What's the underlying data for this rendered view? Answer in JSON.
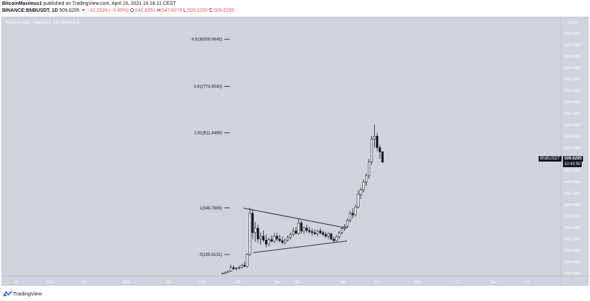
{
  "header": {
    "author": "BitcoinMaximus1",
    "published": "published on TradingView.com, April 16, 2021 15:16:11 CEST",
    "symbol": "BINANCE:BNBUSDT, 1D",
    "last": "509.6295",
    "change": "▼ −32.2529 (−5.95%)",
    "o_label": "O:",
    "o": "541.8351",
    "h_label": "H:",
    "h": "547.6074",
    "l_label": "L:",
    "l": "505.1200",
    "c_label": "C:",
    "c": "509.6295"
  },
  "chart": {
    "legend": "Binance Coin / TetherUS, 1D, BINANCE",
    "currency": "USDT",
    "price_tag": {
      "symbol": "BNBUSDT",
      "price": "509.6295",
      "countdown": "10:43:50"
    },
    "colors": {
      "background": "#d1d4dc",
      "candle": "#131722",
      "axis_text": "#ffffff"
    },
    "y_ticks": [
      "960.0000",
      "920.0000",
      "880.0000",
      "840.0000",
      "800.0000",
      "760.0000",
      "720.0000",
      "680.0000",
      "640.0000",
      "600.0000",
      "560.0000",
      "520.0000",
      "480.0000",
      "440.0000",
      "400.0000",
      "360.0000",
      "320.0000",
      "280.0000",
      "240.0000",
      "200.0000",
      "160.0000",
      "120.0000"
    ],
    "x_ticks": [
      "16",
      "Dec",
      "14",
      "2021",
      "18",
      "Feb",
      "15",
      "Mar",
      "15",
      "Apr",
      "14",
      "May",
      "17",
      "Jun",
      "14"
    ],
    "fib_levels": [
      {
        "label": "4.618(939.0646)",
        "value": 939.0646
      },
      {
        "label": "3.61(774.6040)",
        "value": 774.604
      },
      {
        "label": "2.61(611.4486)",
        "value": 611.4486
      },
      {
        "label": "1(348.7685)",
        "value": 348.7685
      },
      {
        "label": "0(185.6131)",
        "value": 185.6131
      }
    ],
    "triangle": {
      "upper": [
        {
          "date": "2021-02-20",
          "price": 348
        },
        {
          "date": "2021-03-31",
          "price": 278
        }
      ],
      "lower": [
        {
          "date": "2021-02-23",
          "price": 192
        },
        {
          "date": "2021-03-29",
          "price": 233
        }
      ]
    },
    "candles": [
      [
        118,
        122,
        116,
        120
      ],
      [
        120,
        126,
        118,
        124
      ],
      [
        124,
        130,
        122,
        127
      ],
      [
        127,
        150,
        125,
        140
      ],
      [
        140,
        148,
        132,
        136
      ],
      [
        136,
        142,
        130,
        138
      ],
      [
        138,
        146,
        134,
        140
      ],
      [
        140,
        152,
        136,
        148
      ],
      [
        148,
        160,
        142,
        144
      ],
      [
        144,
        190,
        140,
        186
      ],
      [
        186,
        350,
        180,
        330
      ],
      [
        330,
        345,
        240,
        262
      ],
      [
        262,
        300,
        230,
        278
      ],
      [
        278,
        290,
        226,
        240
      ],
      [
        240,
        262,
        220,
        250
      ],
      [
        250,
        270,
        230,
        236
      ],
      [
        236,
        255,
        210,
        222
      ],
      [
        222,
        245,
        215,
        238
      ],
      [
        238,
        252,
        228,
        232
      ],
      [
        232,
        260,
        226,
        250
      ],
      [
        250,
        262,
        232,
        240
      ],
      [
        240,
        256,
        228,
        234
      ],
      [
        234,
        248,
        222,
        228
      ],
      [
        228,
        242,
        220,
        236
      ],
      [
        236,
        252,
        232,
        246
      ],
      [
        246,
        262,
        238,
        256
      ],
      [
        256,
        280,
        250,
        268
      ],
      [
        268,
        282,
        256,
        260
      ],
      [
        260,
        310,
        255,
        296
      ],
      [
        296,
        304,
        258,
        268
      ],
      [
        268,
        284,
        258,
        278
      ],
      [
        278,
        290,
        262,
        270
      ],
      [
        270,
        282,
        258,
        266
      ],
      [
        266,
        276,
        252,
        262
      ],
      [
        262,
        274,
        254,
        258
      ],
      [
        258,
        272,
        250,
        268
      ],
      [
        268,
        278,
        256,
        262
      ],
      [
        262,
        270,
        250,
        256
      ],
      [
        256,
        266,
        244,
        250
      ],
      [
        250,
        264,
        240,
        258
      ],
      [
        258,
        262,
        236,
        240
      ],
      [
        240,
        250,
        226,
        234
      ],
      [
        234,
        254,
        230,
        248
      ],
      [
        248,
        268,
        240,
        262
      ],
      [
        262,
        282,
        256,
        276
      ],
      [
        276,
        292,
        268,
        284
      ],
      [
        284,
        312,
        278,
        306
      ],
      [
        306,
        338,
        298,
        330
      ],
      [
        330,
        348,
        312,
        324
      ],
      [
        324,
        360,
        318,
        352
      ],
      [
        352,
        410,
        346,
        396
      ],
      [
        396,
        420,
        380,
        412
      ],
      [
        412,
        448,
        404,
        440
      ],
      [
        440,
        470,
        426,
        462
      ],
      [
        462,
        520,
        450,
        510
      ],
      [
        510,
        600,
        500,
        590
      ],
      [
        590,
        640,
        560,
        600
      ],
      [
        600,
        612,
        548,
        560
      ],
      [
        560,
        570,
        520,
        545
      ],
      [
        545,
        548,
        505,
        509.6
      ]
    ]
  }
}
